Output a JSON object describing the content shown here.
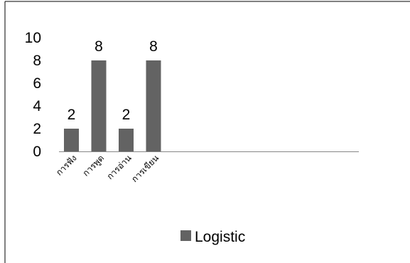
{
  "chart_data": {
    "type": "bar",
    "categories": [
      "การฟัง",
      "การพูด",
      "การอ่าน",
      "การเขียน"
    ],
    "series": [
      {
        "name": "Logistic",
        "values": [
          2,
          8,
          2,
          8
        ],
        "color": "#636363"
      }
    ],
    "data_labels": [
      "2",
      "8",
      "2",
      "8"
    ],
    "y_ticks": [
      "0",
      "2",
      "4",
      "6",
      "8",
      "10"
    ],
    "ylim": [
      0,
      10
    ],
    "grid": false,
    "legend": {
      "position": "bottom-center",
      "label": "Logistic"
    },
    "axis_color": "#868686",
    "border_color": "#000000"
  }
}
